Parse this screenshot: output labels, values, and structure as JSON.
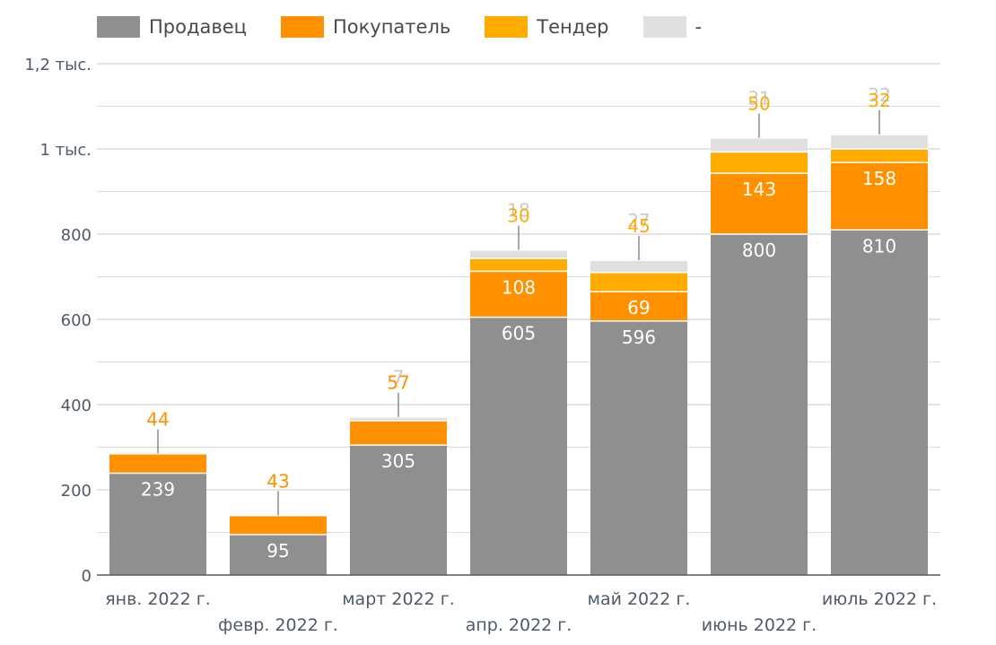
{
  "chart_data": {
    "type": "bar",
    "stacked": true,
    "categories": [
      "янв. 2022 г.",
      "февр. 2022 г.",
      "март 2022 г.",
      "апр. 2022 г.",
      "май 2022 г.",
      "июнь 2022 г.",
      "июль 2022 г."
    ],
    "series": [
      {
        "name": "Продавец",
        "color": "#8f8f8f",
        "values": [
          239,
          95,
          305,
          605,
          596,
          800,
          810
        ]
      },
      {
        "name": "Покупатель",
        "color": "#ff9100",
        "values": [
          44,
          43,
          57,
          108,
          69,
          143,
          158
        ]
      },
      {
        "name": "Тендер",
        "color": "#ffab00",
        "values": [
          0,
          0,
          0,
          30,
          45,
          50,
          32
        ]
      },
      {
        "name": "-",
        "color": "#e0e0e0",
        "values": [
          0,
          0,
          7,
          18,
          27,
          31,
          32
        ]
      }
    ],
    "y_ticks": [
      {
        "value": 0,
        "label": "0"
      },
      {
        "value": 200,
        "label": "200"
      },
      {
        "value": 400,
        "label": "400"
      },
      {
        "value": 600,
        "label": "600"
      },
      {
        "value": 800,
        "label": "800"
      },
      {
        "value": 1000,
        "label": "1 тыс."
      },
      {
        "value": 1200,
        "label": "1,2 тыс."
      }
    ],
    "ylim": [
      0,
      1200
    ],
    "grid": true,
    "legend_position": "top-left",
    "title": "",
    "xlabel": "",
    "ylabel": ""
  }
}
